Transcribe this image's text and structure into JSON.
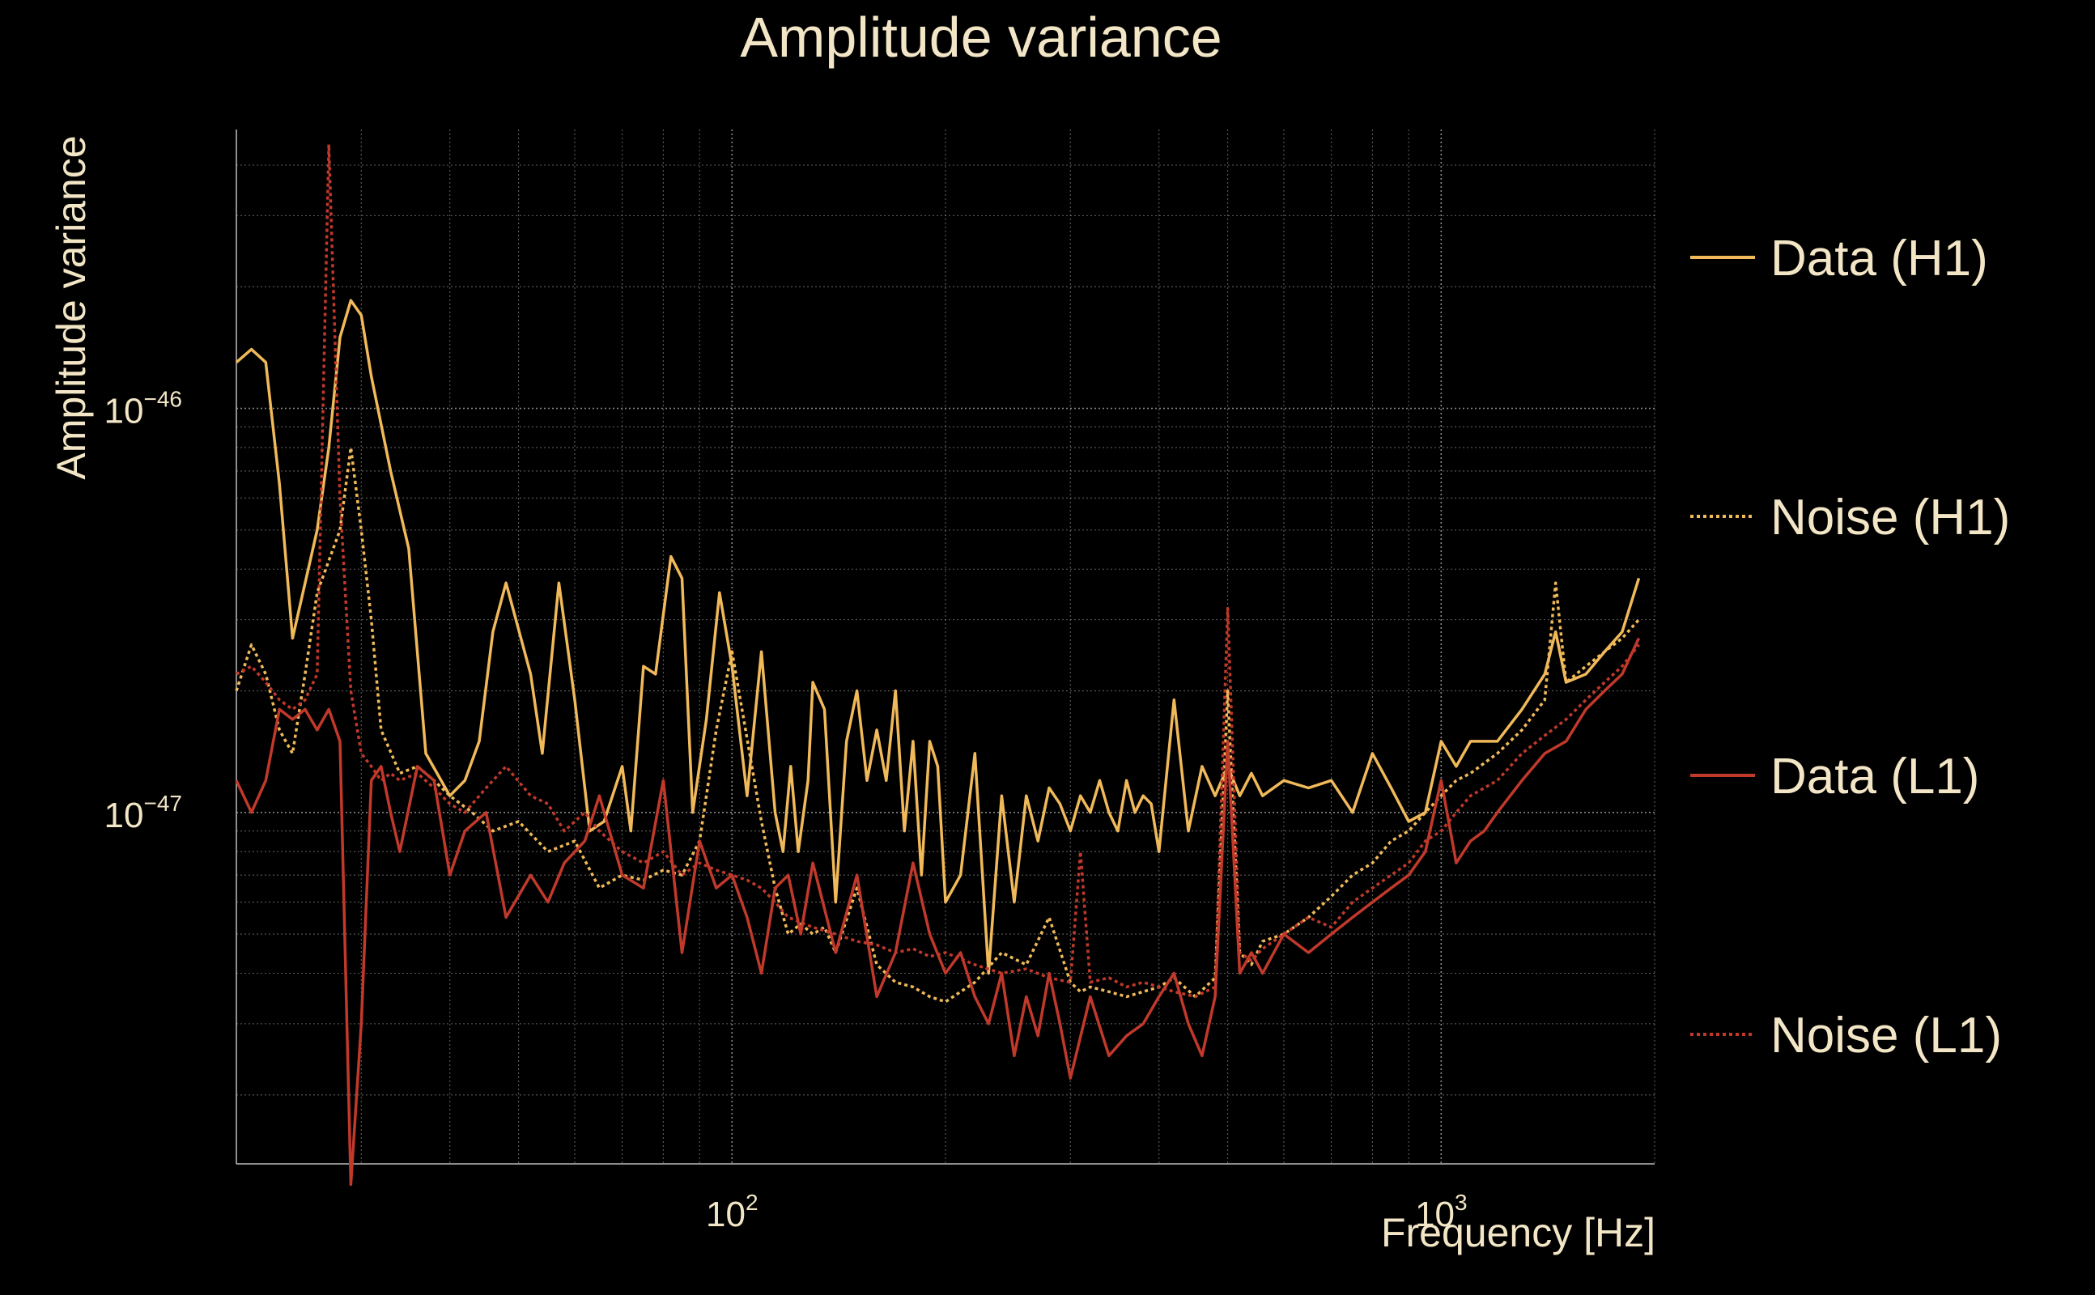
{
  "chart_data": {
    "type": "line",
    "title": "Amplitude variance",
    "xlabel": "Frequency [Hz]",
    "ylabel": "Amplitude variance",
    "x_scale": "log",
    "y_scale": "log",
    "xlim": [
      20,
      2000
    ],
    "ylim": [
      1.35e-48,
      4.9e-46
    ],
    "x_ticks": [
      {
        "value": 100,
        "base": "10",
        "exp": "2"
      },
      {
        "value": 1000,
        "base": "10",
        "exp": "3"
      }
    ],
    "y_ticks": [
      {
        "value": 1e-47,
        "base": "10",
        "exp": "−47"
      },
      {
        "value": 1e-46,
        "base": "10",
        "exp": "−46"
      }
    ],
    "grid": true,
    "legend_position": "right",
    "colors": {
      "background": "#000000",
      "text": "#f3e6c6",
      "grid": "#aaaaaa",
      "h1": "#f0b95a",
      "l1": "#c0392b"
    },
    "series": [
      {
        "name": "Data (H1)",
        "color": "#f0b95a",
        "style": "solid",
        "x": [
          20,
          21,
          22,
          23,
          24,
          26,
          27,
          28,
          29,
          30,
          31,
          33,
          35,
          37,
          40,
          42,
          44,
          46,
          48,
          52,
          54,
          57,
          60,
          63,
          66,
          70,
          72,
          75,
          78,
          82,
          85,
          88,
          92,
          96,
          100,
          105,
          110,
          115,
          118,
          121,
          124,
          128,
          130,
          135,
          140,
          145,
          150,
          155,
          160,
          165,
          170,
          175,
          180,
          185,
          190,
          195,
          200,
          210,
          220,
          230,
          240,
          250,
          260,
          270,
          280,
          290,
          300,
          310,
          320,
          330,
          340,
          350,
          360,
          370,
          380,
          390,
          400,
          420,
          440,
          460,
          480,
          500,
          520,
          540,
          560,
          600,
          650,
          700,
          750,
          800,
          850,
          900,
          950,
          1000,
          1050,
          1100,
          1200,
          1300,
          1400,
          1450,
          1500,
          1600,
          1700,
          1800,
          1900
        ],
        "y": [
          1.3e-46,
          1.4e-46,
          1.3e-46,
          6.5e-47,
          2.7e-47,
          5e-47,
          8e-47,
          1.5e-46,
          1.85e-46,
          1.7e-46,
          1.2e-46,
          7e-47,
          4.5e-47,
          1.4e-47,
          1.1e-47,
          1.2e-47,
          1.5e-47,
          2.8e-47,
          3.7e-47,
          2.2e-47,
          1.4e-47,
          3.7e-47,
          1.9e-47,
          9e-48,
          9.5e-48,
          1.3e-47,
          9e-48,
          2.3e-47,
          2.2e-47,
          4.3e-47,
          3.8e-47,
          1e-47,
          1.7e-47,
          3.5e-47,
          2.3e-47,
          1.1e-47,
          2.5e-47,
          1e-47,
          8e-48,
          1.3e-47,
          8e-48,
          1.2e-47,
          2.1e-47,
          1.8e-47,
          6e-48,
          1.5e-47,
          2e-47,
          1.2e-47,
          1.6e-47,
          1.2e-47,
          2e-47,
          9e-48,
          1.5e-47,
          7e-48,
          1.5e-47,
          1.3e-47,
          6e-48,
          7e-48,
          1.4e-47,
          4e-48,
          1.1e-47,
          6e-48,
          1.1e-47,
          8.5e-48,
          1.15e-47,
          1.05e-47,
          9e-48,
          1.1e-47,
          1e-47,
          1.2e-47,
          1e-47,
          9e-48,
          1.2e-47,
          1e-47,
          1.1e-47,
          1.05e-47,
          8e-48,
          1.9e-47,
          9e-48,
          1.3e-47,
          1.1e-47,
          1.3e-47,
          1.1e-47,
          1.25e-47,
          1.1e-47,
          1.2e-47,
          1.15e-47,
          1.2e-47,
          1e-47,
          1.4e-47,
          1.15e-47,
          9.5e-48,
          1e-47,
          1.5e-47,
          1.3e-47,
          1.5e-47,
          1.5e-47,
          1.8e-47,
          2.2e-47,
          2.8e-47,
          2.1e-47,
          2.2e-47,
          2.5e-47,
          2.8e-47,
          3.8e-47
        ]
      },
      {
        "name": "Noise (H1)",
        "color": "#f0b95a",
        "style": "dotted",
        "x": [
          20,
          21,
          22,
          23,
          24,
          25,
          26,
          27,
          28,
          29,
          30,
          31,
          32,
          34,
          36,
          38,
          40,
          43,
          46,
          50,
          55,
          60,
          65,
          70,
          75,
          80,
          85,
          90,
          95,
          100,
          110,
          115,
          120,
          125,
          130,
          135,
          140,
          150,
          160,
          170,
          180,
          190,
          200,
          220,
          240,
          260,
          280,
          300,
          310,
          320,
          340,
          360,
          380,
          400,
          420,
          450,
          480,
          500,
          520,
          540,
          560,
          600,
          650,
          700,
          750,
          800,
          850,
          900,
          950,
          1000,
          1050,
          1100,
          1200,
          1300,
          1400,
          1450,
          1500,
          1600,
          1700,
          1800,
          1900
        ],
        "y": [
          2e-47,
          2.6e-47,
          2.2e-47,
          1.6e-47,
          1.4e-47,
          2.2e-47,
          3.5e-47,
          4.2e-47,
          5e-47,
          8e-47,
          5e-47,
          3e-47,
          1.6e-47,
          1.25e-47,
          1.3e-47,
          1.2e-47,
          1.1e-47,
          1e-47,
          9e-48,
          9.5e-48,
          8e-48,
          8.5e-48,
          6.5e-48,
          7e-48,
          6.8e-48,
          7.2e-48,
          7e-48,
          8.5e-48,
          1.6e-47,
          2.5e-47,
          9.5e-48,
          6.5e-48,
          5e-48,
          5.3e-48,
          5e-48,
          5.2e-48,
          4.5e-48,
          6.5e-48,
          4.2e-48,
          3.8e-48,
          3.7e-48,
          3.5e-48,
          3.4e-48,
          3.8e-48,
          4.5e-48,
          4.2e-48,
          5.5e-48,
          3.8e-48,
          3.6e-48,
          3.7e-48,
          3.6e-48,
          3.5e-48,
          3.6e-48,
          3.7e-48,
          3.9e-48,
          3.5e-48,
          3.9e-48,
          2e-47,
          4.5e-48,
          4.2e-48,
          4.8e-48,
          5e-48,
          5.5e-48,
          6.2e-48,
          7e-48,
          7.5e-48,
          8.5e-48,
          9e-48,
          1e-47,
          1.1e-47,
          1.2e-47,
          1.25e-47,
          1.4e-47,
          1.6e-47,
          1.9e-47,
          3.7e-47,
          2.1e-47,
          2.3e-47,
          2.5e-47,
          2.7e-47,
          3e-47
        ]
      },
      {
        "name": "Data (L1)",
        "color": "#c0392b",
        "style": "solid",
        "x": [
          20,
          21,
          22,
          23,
          24,
          25,
          26,
          27,
          28,
          29,
          30,
          31,
          32,
          33,
          34,
          36,
          38,
          40,
          42,
          45,
          48,
          52,
          55,
          58,
          62,
          65,
          70,
          75,
          80,
          85,
          90,
          95,
          100,
          105,
          110,
          115,
          120,
          125,
          130,
          140,
          150,
          160,
          170,
          180,
          190,
          200,
          210,
          220,
          230,
          240,
          250,
          260,
          270,
          280,
          290,
          300,
          320,
          340,
          360,
          380,
          400,
          420,
          440,
          460,
          480,
          500,
          520,
          540,
          560,
          600,
          650,
          700,
          750,
          800,
          850,
          900,
          950,
          1000,
          1050,
          1100,
          1150,
          1200,
          1300,
          1400,
          1500,
          1600,
          1700,
          1800,
          1900
        ],
        "y": [
          1.2e-47,
          1e-47,
          1.2e-47,
          1.8e-47,
          1.7e-47,
          1.8e-47,
          1.6e-47,
          1.8e-47,
          1.5e-47,
          1.2e-48,
          3e-48,
          1.2e-47,
          1.3e-47,
          1e-47,
          8e-48,
          1.3e-47,
          1.2e-47,
          7e-48,
          9e-48,
          1e-47,
          5.5e-48,
          7e-48,
          6e-48,
          7.5e-48,
          8.5e-48,
          1.1e-47,
          7e-48,
          6.5e-48,
          1.2e-47,
          4.5e-48,
          8.5e-48,
          6.5e-48,
          7e-48,
          5.5e-48,
          4e-48,
          6.5e-48,
          7e-48,
          5e-48,
          7.5e-48,
          4.5e-48,
          7e-48,
          3.5e-48,
          4.5e-48,
          7.5e-48,
          5e-48,
          4e-48,
          4.5e-48,
          3.5e-48,
          3e-48,
          4e-48,
          2.5e-48,
          3.5e-48,
          2.8e-48,
          4e-48,
          3e-48,
          2.2e-48,
          3.5e-48,
          2.5e-48,
          2.8e-48,
          3e-48,
          3.5e-48,
          4e-48,
          3e-48,
          2.5e-48,
          3.5e-48,
          1.5e-47,
          4e-48,
          4.5e-48,
          4e-48,
          5e-48,
          4.5e-48,
          5e-48,
          5.5e-48,
          6e-48,
          6.5e-48,
          7e-48,
          8e-48,
          1.2e-47,
          7.5e-48,
          8.5e-48,
          9e-48,
          1e-47,
          1.2e-47,
          1.4e-47,
          1.5e-47,
          1.8e-47,
          2e-47,
          2.2e-47,
          2.7e-47
        ]
      },
      {
        "name": "Noise (L1)",
        "color": "#c0392b",
        "style": "dotted",
        "x": [
          20,
          21,
          22,
          23,
          24,
          25,
          26,
          27,
          28,
          29,
          30,
          31,
          32,
          33,
          34,
          36,
          38,
          40,
          42,
          45,
          48,
          52,
          55,
          58,
          62,
          65,
          70,
          75,
          80,
          85,
          90,
          95,
          100,
          105,
          110,
          115,
          120,
          130,
          140,
          150,
          160,
          170,
          180,
          190,
          200,
          220,
          240,
          260,
          280,
          300,
          310,
          320,
          340,
          360,
          380,
          400,
          420,
          450,
          480,
          500,
          520,
          540,
          560,
          600,
          650,
          700,
          750,
          800,
          850,
          900,
          950,
          1000,
          1050,
          1100,
          1200,
          1300,
          1400,
          1500,
          1600,
          1700,
          1800,
          1900
        ],
        "y": [
          2.2e-47,
          2.3e-47,
          2.1e-47,
          1.9e-47,
          1.8e-47,
          1.9e-47,
          2.2e-47,
          4.5e-46,
          6e-47,
          2e-47,
          1.4e-47,
          1.3e-47,
          1.2e-47,
          1.25e-47,
          1.2e-47,
          1.25e-47,
          1.15e-47,
          1.05e-47,
          1e-47,
          1.15e-47,
          1.3e-47,
          1.1e-47,
          1.05e-47,
          9e-48,
          1e-47,
          9e-48,
          8e-48,
          7.5e-48,
          8e-48,
          7e-48,
          7.5e-48,
          7.2e-48,
          7e-48,
          6.8e-48,
          6.5e-48,
          6e-48,
          5.5e-48,
          5.2e-48,
          5e-48,
          4.8e-48,
          4.7e-48,
          4.5e-48,
          4.6e-48,
          4.4e-48,
          4.5e-48,
          4.2e-48,
          4e-48,
          4.1e-48,
          3.9e-48,
          3.8e-48,
          8e-48,
          3.8e-48,
          3.9e-48,
          3.7e-48,
          3.8e-48,
          3.7e-48,
          3.6e-48,
          3.5e-48,
          3.7e-48,
          3.2e-47,
          4.5e-48,
          4.3e-48,
          4.6e-48,
          5e-48,
          5.5e-48,
          5.2e-48,
          6e-48,
          6.5e-48,
          7e-48,
          7.5e-48,
          8.5e-48,
          9e-48,
          1e-47,
          1.1e-47,
          1.2e-47,
          1.4e-47,
          1.55e-47,
          1.7e-47,
          1.9e-47,
          2.1e-47,
          2.3e-47,
          2.6e-47
        ]
      }
    ]
  }
}
